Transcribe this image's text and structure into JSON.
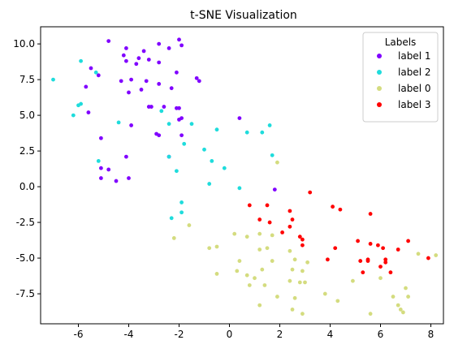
{
  "chart_data": {
    "type": "scatter",
    "title": "t-SNE Visualization",
    "xlabel": "",
    "ylabel": "",
    "xlim": [
      -7.5,
      8.5
    ],
    "ylim": [
      -9.6,
      11.2
    ],
    "xticks": [
      -6,
      -4,
      -2,
      0,
      2,
      4,
      6,
      8
    ],
    "yticks": [
      -7.5,
      -5.0,
      -2.5,
      0.0,
      2.5,
      5.0,
      7.5,
      10.0
    ],
    "grid": false,
    "legend": {
      "title": "Labels",
      "placement": "top-right"
    },
    "series": [
      {
        "name": "label 1",
        "color": "#8000ff",
        "points": [
          [
            -4.8,
            10.2
          ],
          [
            -4.1,
            9.7
          ],
          [
            -3.4,
            9.5
          ],
          [
            -4.2,
            9.2
          ],
          [
            -3.6,
            9.0
          ],
          [
            -3.2,
            8.9
          ],
          [
            -4.1,
            8.8
          ],
          [
            -3.7,
            8.6
          ],
          [
            -5.5,
            8.3
          ],
          [
            -5.2,
            7.8
          ],
          [
            -4.3,
            7.4
          ],
          [
            -3.9,
            7.5
          ],
          [
            -3.3,
            7.4
          ],
          [
            -2.8,
            8.7
          ],
          [
            -2.4,
            9.7
          ],
          [
            -2.0,
            10.3
          ],
          [
            -1.9,
            9.9
          ],
          [
            -2.8,
            10.0
          ],
          [
            -2.1,
            8.0
          ],
          [
            -1.3,
            7.6
          ],
          [
            -1.2,
            7.4
          ],
          [
            -2.8,
            7.2
          ],
          [
            -2.3,
            6.9
          ],
          [
            -4.0,
            6.6
          ],
          [
            -3.5,
            6.8
          ],
          [
            -5.7,
            7.0
          ],
          [
            -2.6,
            5.6
          ],
          [
            -3.1,
            5.6
          ],
          [
            -3.2,
            5.6
          ],
          [
            -2.1,
            5.5
          ],
          [
            -2.0,
            5.5
          ],
          [
            -1.9,
            4.8
          ],
          [
            -2.0,
            4.7
          ],
          [
            -3.9,
            4.3
          ],
          [
            -5.6,
            5.2
          ],
          [
            -1.9,
            3.6
          ],
          [
            -2.8,
            3.6
          ],
          [
            -2.9,
            3.7
          ],
          [
            -2.4,
            2.1
          ],
          [
            -4.1,
            2.1
          ],
          [
            -5.1,
            3.4
          ],
          [
            -5.1,
            1.3
          ],
          [
            -4.8,
            1.2
          ],
          [
            -5.1,
            0.6
          ],
          [
            -4.5,
            0.4
          ],
          [
            -4.0,
            0.6
          ],
          [
            0.4,
            4.8
          ],
          [
            1.8,
            -0.2
          ]
        ]
      },
      {
        "name": "label 2",
        "color": "#1fdcdc",
        "points": [
          [
            -7.0,
            7.5
          ],
          [
            -5.9,
            8.8
          ],
          [
            -5.3,
            8.0
          ],
          [
            -5.9,
            5.8
          ],
          [
            -6.0,
            5.7
          ],
          [
            -6.2,
            5.0
          ],
          [
            -4.4,
            4.5
          ],
          [
            -2.7,
            5.3
          ],
          [
            -2.4,
            4.4
          ],
          [
            -1.8,
            3.0
          ],
          [
            -1.5,
            4.4
          ],
          [
            -0.5,
            4.0
          ],
          [
            -1.0,
            2.6
          ],
          [
            -0.7,
            1.8
          ],
          [
            -2.1,
            1.1
          ],
          [
            -0.2,
            1.3
          ],
          [
            -2.4,
            2.1
          ],
          [
            -5.2,
            1.8
          ],
          [
            -0.8,
            0.2
          ],
          [
            0.4,
            -0.1
          ],
          [
            0.7,
            3.8
          ],
          [
            1.3,
            3.8
          ],
          [
            1.6,
            4.3
          ],
          [
            1.7,
            2.2
          ],
          [
            -1.9,
            -1.1
          ],
          [
            -1.9,
            -1.8
          ],
          [
            -2.3,
            -2.2
          ]
        ]
      },
      {
        "name": "label 0",
        "color": "#d4dc7f",
        "points": [
          [
            1.9,
            1.7
          ],
          [
            -1.6,
            -2.7
          ],
          [
            -2.2,
            -3.6
          ],
          [
            -0.8,
            -4.3
          ],
          [
            -0.5,
            -4.2
          ],
          [
            0.2,
            -3.3
          ],
          [
            0.7,
            -3.5
          ],
          [
            1.2,
            -3.3
          ],
          [
            1.7,
            -3.4
          ],
          [
            1.5,
            -4.3
          ],
          [
            0.4,
            -5.2
          ],
          [
            1.2,
            -4.4
          ],
          [
            2.4,
            -4.5
          ],
          [
            2.6,
            -5.1
          ],
          [
            1.7,
            -5.2
          ],
          [
            2.5,
            -5.8
          ],
          [
            1.3,
            -5.8
          ],
          [
            0.3,
            -5.9
          ],
          [
            0.7,
            -6.2
          ],
          [
            -0.5,
            -6.1
          ],
          [
            1.0,
            -6.4
          ],
          [
            0.8,
            -6.9
          ],
          [
            1.4,
            -6.9
          ],
          [
            2.4,
            -6.6
          ],
          [
            2.8,
            -6.7
          ],
          [
            2.9,
            -5.9
          ],
          [
            3.1,
            -5.3
          ],
          [
            3.0,
            -6.7
          ],
          [
            1.9,
            -7.7
          ],
          [
            2.6,
            -7.8
          ],
          [
            1.2,
            -8.3
          ],
          [
            2.5,
            -8.6
          ],
          [
            2.9,
            -8.9
          ],
          [
            3.8,
            -7.5
          ],
          [
            4.3,
            -8.0
          ],
          [
            4.9,
            -6.6
          ],
          [
            5.6,
            -8.9
          ],
          [
            6.0,
            -6.4
          ],
          [
            6.5,
            -7.7
          ],
          [
            6.7,
            -8.3
          ],
          [
            6.9,
            -8.8
          ],
          [
            7.0,
            -7.1
          ],
          [
            7.1,
            -7.7
          ],
          [
            7.5,
            -4.7
          ],
          [
            8.2,
            -4.8
          ],
          [
            6.8,
            -8.6
          ]
        ]
      },
      {
        "name": "label 3",
        "color": "#ff0000",
        "points": [
          [
            0.8,
            -1.3
          ],
          [
            1.5,
            -1.3
          ],
          [
            1.2,
            -2.3
          ],
          [
            1.6,
            -2.5
          ],
          [
            2.4,
            -1.7
          ],
          [
            2.5,
            -2.3
          ],
          [
            2.4,
            -2.8
          ],
          [
            2.1,
            -3.2
          ],
          [
            2.8,
            -3.5
          ],
          [
            2.9,
            -3.7
          ],
          [
            2.9,
            -4.1
          ],
          [
            3.2,
            -0.4
          ],
          [
            4.1,
            -1.4
          ],
          [
            4.4,
            -1.6
          ],
          [
            5.6,
            -1.9
          ],
          [
            4.2,
            -4.3
          ],
          [
            3.9,
            -5.1
          ],
          [
            5.1,
            -3.8
          ],
          [
            5.6,
            -4.0
          ],
          [
            5.9,
            -4.1
          ],
          [
            6.1,
            -4.3
          ],
          [
            6.7,
            -4.4
          ],
          [
            7.1,
            -3.8
          ],
          [
            5.2,
            -5.2
          ],
          [
            5.5,
            -5.1
          ],
          [
            5.5,
            -5.2
          ],
          [
            5.3,
            -6.0
          ],
          [
            6.0,
            -5.6
          ],
          [
            6.2,
            -5.1
          ],
          [
            6.2,
            -5.3
          ],
          [
            6.4,
            -6.0
          ],
          [
            7.9,
            -5.0
          ]
        ]
      }
    ]
  }
}
